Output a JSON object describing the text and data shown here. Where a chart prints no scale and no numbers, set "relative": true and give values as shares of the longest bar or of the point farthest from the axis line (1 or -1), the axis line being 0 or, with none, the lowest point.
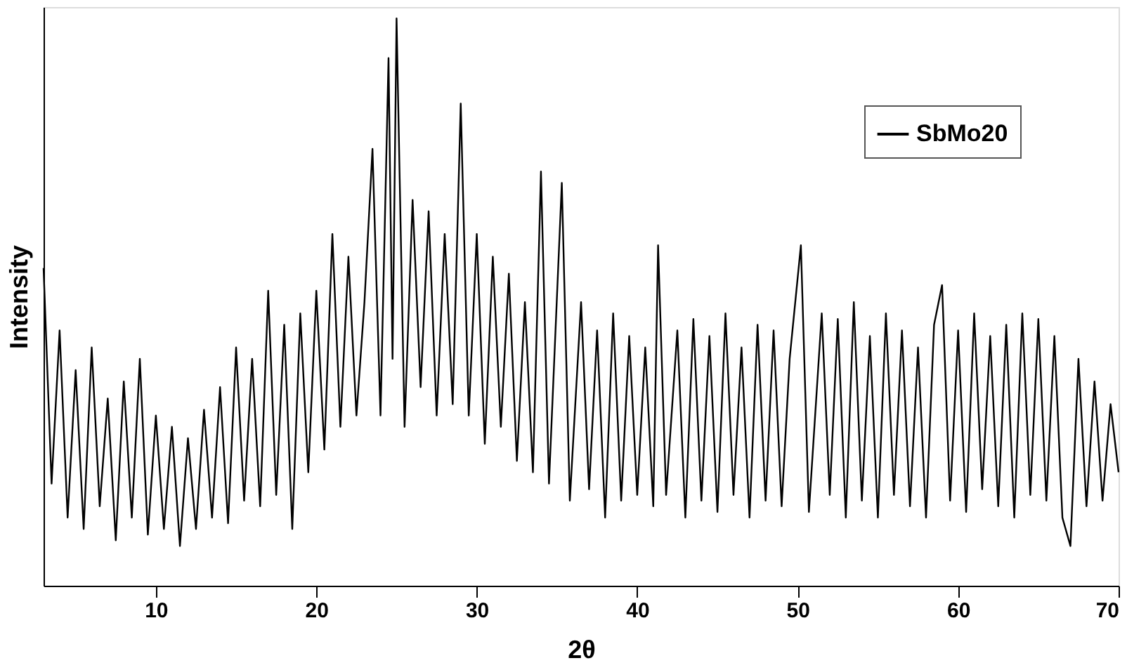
{
  "chart_data": {
    "type": "line",
    "xlabel": "2θ",
    "ylabel": "Intensity",
    "relative": true,
    "xlim": [
      3,
      70
    ],
    "xticks": [
      10,
      20,
      30,
      40,
      50,
      60,
      70
    ],
    "grid": false,
    "legend": "top right",
    "tick_labels": "x",
    "series": [
      {
        "name": "SbMo20",
        "color": "#000000",
        "x": [
          3.0,
          3.5,
          4.0,
          4.5,
          5.0,
          5.5,
          6.0,
          6.5,
          7.0,
          7.5,
          8.0,
          8.5,
          9.0,
          9.5,
          10.0,
          10.5,
          11.0,
          11.5,
          12.0,
          12.5,
          13.0,
          13.5,
          14.0,
          14.5,
          15.0,
          15.5,
          16.0,
          16.5,
          17.0,
          17.5,
          18.0,
          18.5,
          19.0,
          19.5,
          20.0,
          20.5,
          21.0,
          21.5,
          22.0,
          22.5,
          23.0,
          23.5,
          24.0,
          24.5,
          24.75,
          25.0,
          25.5,
          26.0,
          26.5,
          27.0,
          27.5,
          28.0,
          28.5,
          29.0,
          29.5,
          30.0,
          30.5,
          31.0,
          31.5,
          32.0,
          32.5,
          33.0,
          33.5,
          34.0,
          34.5,
          35.3,
          35.8,
          36.5,
          37.0,
          37.5,
          38.0,
          38.5,
          39.0,
          39.5,
          40.0,
          40.5,
          41.0,
          41.3,
          41.8,
          42.5,
          43.0,
          43.5,
          44.0,
          44.5,
          45.0,
          45.5,
          46.0,
          46.5,
          47.0,
          47.5,
          48.0,
          48.5,
          49.0,
          49.5,
          50.2,
          50.7,
          51.5,
          52.0,
          52.5,
          53.0,
          53.5,
          54.0,
          54.5,
          55.0,
          55.5,
          56.0,
          56.5,
          57.0,
          57.5,
          58.0,
          58.5,
          59.0,
          59.5,
          60.0,
          60.5,
          61.0,
          61.5,
          62.0,
          62.5,
          63.0,
          63.5,
          64.0,
          64.5,
          65.0,
          65.5,
          66.0,
          66.5,
          67.0,
          67.5,
          68.0,
          68.5,
          69.0,
          69.5,
          70.0
        ],
        "values": [
          0.56,
          0.18,
          0.45,
          0.12,
          0.38,
          0.1,
          0.42,
          0.14,
          0.33,
          0.08,
          0.36,
          0.12,
          0.4,
          0.09,
          0.3,
          0.1,
          0.28,
          0.07,
          0.26,
          0.1,
          0.31,
          0.12,
          0.35,
          0.11,
          0.42,
          0.15,
          0.4,
          0.14,
          0.52,
          0.16,
          0.46,
          0.1,
          0.48,
          0.2,
          0.52,
          0.24,
          0.62,
          0.28,
          0.58,
          0.3,
          0.5,
          0.77,
          0.3,
          0.93,
          0.4,
          1.0,
          0.28,
          0.68,
          0.35,
          0.66,
          0.3,
          0.62,
          0.32,
          0.85,
          0.3,
          0.62,
          0.25,
          0.58,
          0.28,
          0.55,
          0.22,
          0.5,
          0.2,
          0.73,
          0.18,
          0.71,
          0.15,
          0.5,
          0.17,
          0.45,
          0.12,
          0.48,
          0.15,
          0.44,
          0.16,
          0.42,
          0.14,
          0.6,
          0.16,
          0.45,
          0.12,
          0.47,
          0.15,
          0.44,
          0.13,
          0.48,
          0.16,
          0.42,
          0.12,
          0.46,
          0.15,
          0.45,
          0.14,
          0.4,
          0.6,
          0.13,
          0.48,
          0.16,
          0.47,
          0.12,
          0.5,
          0.15,
          0.44,
          0.12,
          0.48,
          0.16,
          0.45,
          0.14,
          0.42,
          0.12,
          0.46,
          0.53,
          0.15,
          0.45,
          0.13,
          0.48,
          0.17,
          0.44,
          0.14,
          0.46,
          0.12,
          0.48,
          0.16,
          0.47,
          0.15,
          0.44,
          0.12,
          0.07,
          0.4,
          0.14,
          0.36,
          0.15,
          0.32,
          0.2
        ]
      }
    ]
  }
}
